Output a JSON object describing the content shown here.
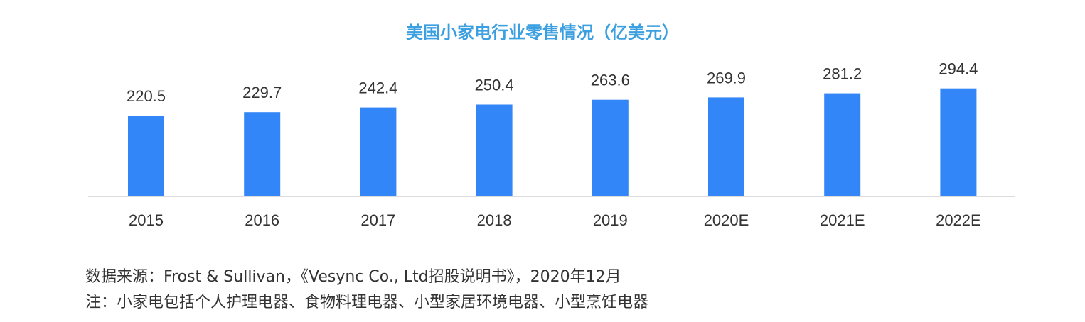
{
  "chart_data": {
    "type": "bar",
    "title": "美国小家电行业零售情况（亿美元）",
    "categories": [
      "2015",
      "2016",
      "2017",
      "2018",
      "2019",
      "2020E",
      "2021E",
      "2022E"
    ],
    "values": [
      220.5,
      229.7,
      242.4,
      250.4,
      263.6,
      269.9,
      281.2,
      294.4
    ],
    "value_labels": [
      "220.5",
      "229.7",
      "242.4",
      "250.4",
      "263.6",
      "269.9",
      "281.2",
      "294.4"
    ],
    "xlabel": "",
    "ylabel": "",
    "ylim": [
      0,
      300
    ],
    "grid": false,
    "legend": "none",
    "colors": {
      "bar": "#3386f7",
      "title": "#3b9fe0",
      "axis": "#d0d0d0",
      "text": "#333333"
    }
  },
  "notes": {
    "source": "数据来源：Frost & Sullivan，《Vesync Co., Ltd招股说明书》，2020年12月",
    "footnote": "注：小家电包括个人护理电器、食物料理电器、小型家居环境电器、小型烹饪电器"
  }
}
